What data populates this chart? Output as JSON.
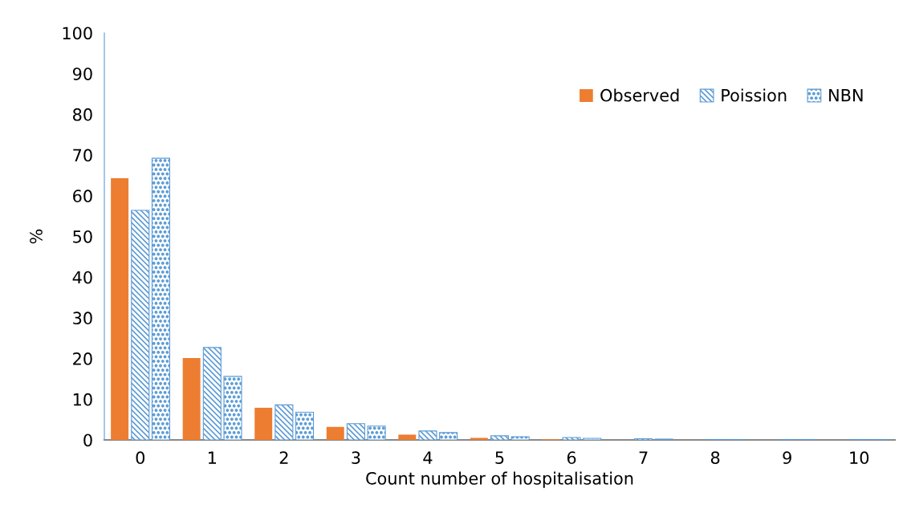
{
  "chart_data": {
    "type": "bar",
    "xlabel": "Count number of hospitalisation",
    "ylabel": "%",
    "categories": [
      "0",
      "1",
      "2",
      "3",
      "4",
      "5",
      "6",
      "7",
      "8",
      "9",
      "10"
    ],
    "series": [
      {
        "name": "Observed",
        "color": "#ed7d31",
        "values": [
          64.3,
          20.1,
          7.9,
          3.2,
          1.3,
          0.5,
          0.2,
          0,
          0,
          0,
          0
        ]
      },
      {
        "name": "Poission",
        "color": "#5b9bd5",
        "values": [
          56.4,
          22.7,
          8.6,
          4.0,
          2.2,
          1.0,
          0.6,
          0.3,
          0.1,
          0.1,
          0.1
        ]
      },
      {
        "name": "NBN",
        "color": "#5b9bd5",
        "values": [
          69.2,
          15.6,
          6.8,
          3.4,
          1.8,
          0.8,
          0.4,
          0.2,
          0.1,
          0.1,
          0.1
        ]
      }
    ],
    "ylim": [
      0,
      100
    ],
    "yticks": [
      0,
      10,
      20,
      30,
      40,
      50,
      60,
      70,
      80,
      90,
      100
    ],
    "grid": false,
    "legend": "top right"
  }
}
